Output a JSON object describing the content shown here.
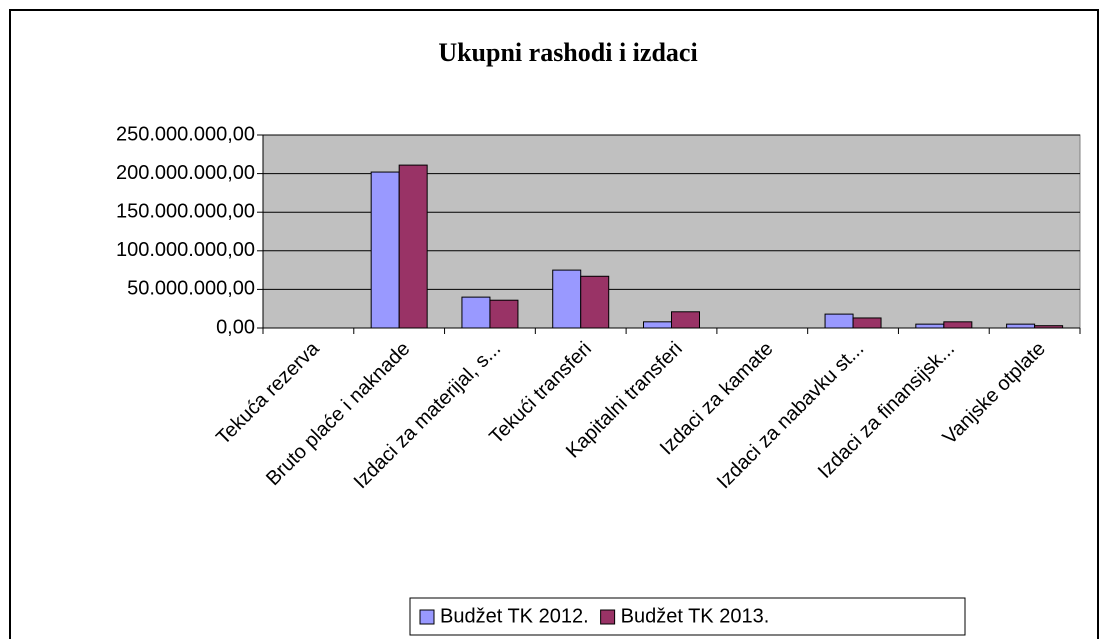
{
  "chart_data": {
    "type": "bar",
    "title": "Ukupni rashodi i izdaci",
    "categories": [
      "Tekuća rezerva",
      "Bruto plaće i naknade",
      "Izdaci za materijal, s...",
      "Tekući transferi",
      "Kapitalni transferi",
      "Izdaci za kamate",
      "Izdaci za nabavku st...",
      "Izdaci za finansijsk...",
      "Vanjske otplate"
    ],
    "series": [
      {
        "name": "Budžet TK 2012.",
        "color": "#9999ff",
        "values": [
          0,
          202000000,
          40000000,
          75000000,
          8000000,
          0,
          18000000,
          5000000,
          5000000
        ]
      },
      {
        "name": "Budžet TK 2013.",
        "color": "#993366",
        "values": [
          0,
          211000000,
          36000000,
          67000000,
          21000000,
          0,
          13000000,
          8000000,
          3000000
        ]
      }
    ],
    "ylim": [
      0,
      250000000
    ],
    "yticks": [
      {
        "value": 0,
        "label": "0,00"
      },
      {
        "value": 50000000,
        "label": "50.000.000,00"
      },
      {
        "value": 100000000,
        "label": "100.000.000,00"
      },
      {
        "value": 150000000,
        "label": "150.000.000,00"
      },
      {
        "value": 200000000,
        "label": "200.000.000,00"
      },
      {
        "value": 250000000,
        "label": "250.000.000,00"
      }
    ],
    "grid": true,
    "legend": "bottom"
  }
}
